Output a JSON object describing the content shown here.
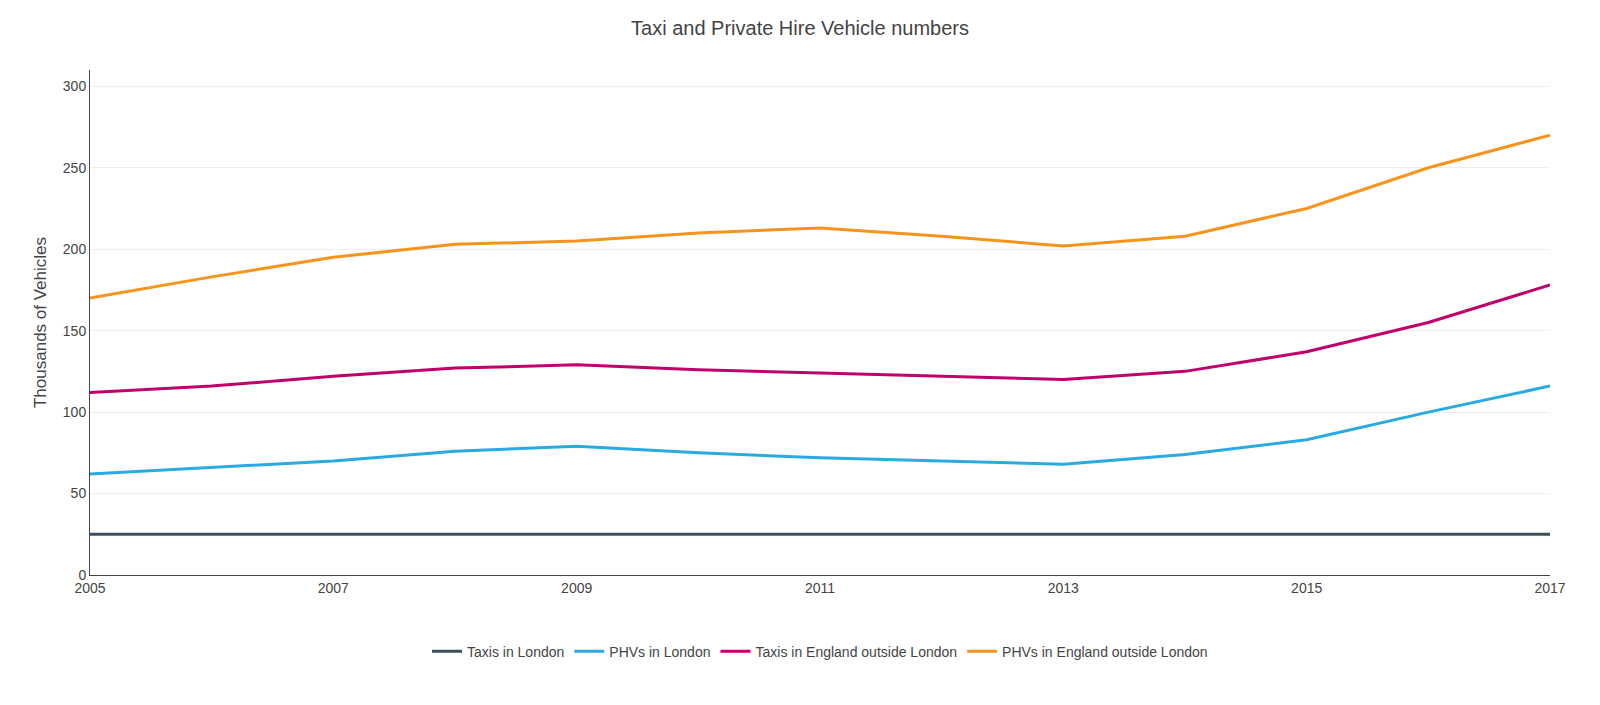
{
  "chart_data": {
    "type": "line",
    "title": "Taxi and Private Hire Vehicle numbers",
    "ylabel": "Thousands of Vehicles",
    "x": [
      2005,
      2006,
      2007,
      2008,
      2009,
      2010,
      2011,
      2012,
      2013,
      2014,
      2015,
      2016,
      2017
    ],
    "series": [
      {
        "name": "Taxis in London",
        "color": "#3d4f5c",
        "values": [
          25,
          25,
          25,
          25,
          25,
          25,
          25,
          25,
          25,
          25,
          25,
          25,
          25
        ]
      },
      {
        "name": "PHVs in London",
        "color": "#29abe2",
        "values": [
          62,
          66,
          70,
          76,
          79,
          75,
          72,
          70,
          68,
          74,
          83,
          100,
          116
        ]
      },
      {
        "name": "Taxis in England outside London",
        "color": "#c0006a",
        "values": [
          112,
          116,
          122,
          127,
          129,
          126,
          124,
          122,
          120,
          125,
          137,
          155,
          178
        ]
      },
      {
        "name": "PHVs in England outside London",
        "color": "#f7941d",
        "values": [
          170,
          183,
          195,
          203,
          205,
          210,
          213,
          208,
          202,
          208,
          225,
          250,
          270
        ]
      }
    ],
    "xlim": [
      2005,
      2017
    ],
    "xticks": [
      2005,
      2007,
      2009,
      2011,
      2013,
      2015,
      2017
    ],
    "ylim": [
      0,
      310
    ],
    "yticks": [
      0,
      50,
      100,
      150,
      200,
      250,
      300
    ],
    "grid": "y",
    "legend": "bottom"
  }
}
